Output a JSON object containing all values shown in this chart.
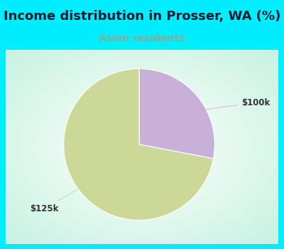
{
  "title": "Income distribution in Prosser, WA (%)",
  "subtitle": "Asian residents",
  "title_color": "#1a1a2e",
  "subtitle_color": "#88aa99",
  "background_color": "#00eeff",
  "chart_bg_left": "#b8e8d8",
  "chart_bg_right": "#e8f0f8",
  "slices": [
    {
      "label": "$125k",
      "value": 72,
      "color": "#ccd898"
    },
    {
      "label": "$100k",
      "value": 28,
      "color": "#c8b0d8"
    }
  ],
  "label_fontsize": 8.5,
  "title_fontsize": 13,
  "subtitle_fontsize": 10,
  "label_color": "#333333"
}
